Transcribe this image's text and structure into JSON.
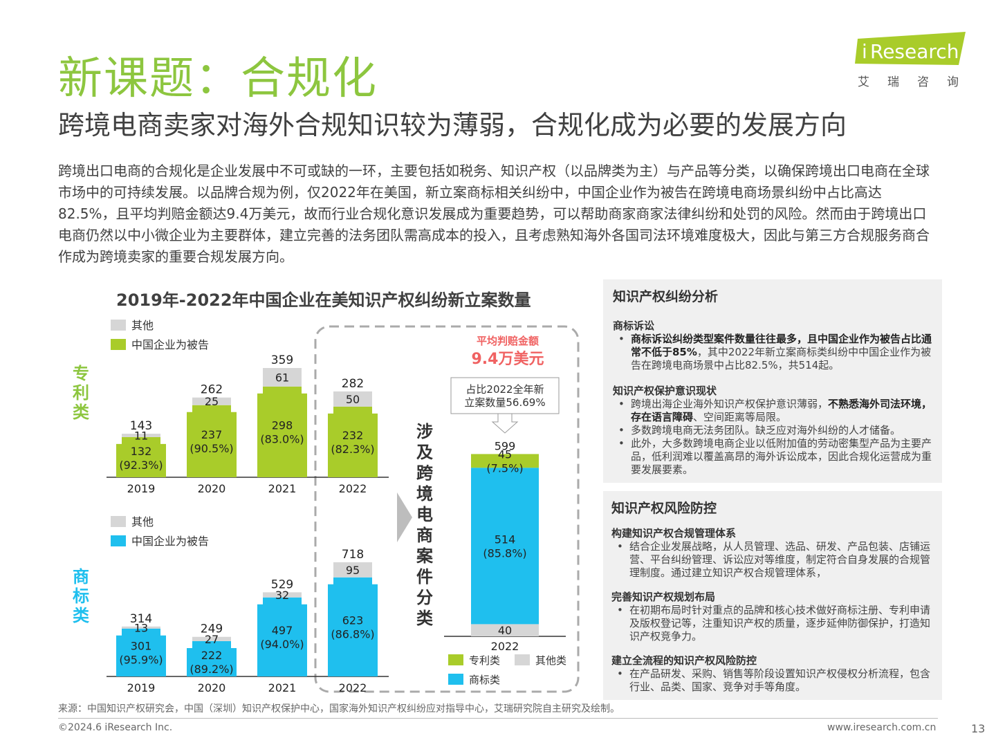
{
  "header": {
    "title": "新课题：合规化",
    "subtitle": "跨境电商卖家对海外合规知识较为薄弱，合规化成为必要的发展方向",
    "logo_i": "i",
    "logo_text": "Research",
    "logo_cn": "艾瑞咨询"
  },
  "intro": "跨境出口电商的合规化是企业发展中不可或缺的一环，主要包括如税务、知识产权（以品牌类为主）与产品等分类，以确保跨境出口电商在全球市场中的可持续发展。以品牌合规为例，仅2022年在美国，新立案商标相关纠纷中，中国企业作为被告在跨境电商场景纠纷中占比高达82.5%，且平均判赔金额达9.4万美元，故而行业合规化意识发展成为重要趋势，可以帮助商家商家法律纠纷和处罚的风险。然而由于跨境出口电商仍然以中小微企业为主要群体，建立完善的法务团队需高成本的投入，且考虑熟知海外各国司法环境难度极大，因此与第三方合规服务商合作成为跨境卖家的重要合规发展方向。",
  "colors": {
    "green": "#a9cc2a",
    "blue": "#1fbfee",
    "gray": "#d6d6d6",
    "title_green": "#8dc63f",
    "label_green": "#8dc63f",
    "label_blue": "#1fbfee",
    "red": "#f06262"
  },
  "chart_data": [
    {
      "type": "bar",
      "title": "2019年-2022年中国企业在美知识产权纠纷新立案数量",
      "row_label": "专利类",
      "categories": [
        "2019",
        "2020",
        "2021",
        "2022"
      ],
      "legend": [
        "其他",
        "中国企业为被告"
      ],
      "series": [
        {
          "name": "中国企业为被告",
          "values": [
            132,
            237,
            298,
            232
          ],
          "labels": [
            "(92.3%)",
            "(90.5%)",
            "(83.0%)",
            "(82.3%)"
          ]
        },
        {
          "name": "其他",
          "values": [
            11,
            25,
            61,
            50
          ]
        }
      ],
      "totals": [
        143,
        262,
        359,
        282
      ]
    },
    {
      "type": "bar",
      "row_label": "商标类",
      "categories": [
        "2019",
        "2020",
        "2021",
        "2022"
      ],
      "legend": [
        "其他",
        "中国企业为被告"
      ],
      "series": [
        {
          "name": "中国企业为被告",
          "values": [
            301,
            222,
            497,
            623
          ],
          "labels": [
            "(95.9%)",
            "(89.2%)",
            "(94.0%)",
            "(86.8%)"
          ]
        },
        {
          "name": "其他",
          "values": [
            13,
            27,
            32,
            95
          ]
        }
      ],
      "totals": [
        314,
        249,
        529,
        718
      ]
    },
    {
      "type": "bar",
      "categories": [
        "2022"
      ],
      "side_label": "涉及跨境电商案件分类",
      "segments": [
        {
          "name": "其他类",
          "value": 40
        },
        {
          "name": "商标类",
          "value": 514,
          "label": "(85.8%)"
        },
        {
          "name": "专利类",
          "value": 45,
          "label": "(7.5%)"
        }
      ],
      "total": 599,
      "legend": [
        "专利类",
        "其他类",
        "商标类"
      ],
      "award_title": "平均判赔金额",
      "award_value": "9.4万美元",
      "callout": [
        "占比2022全年新",
        "立案数量56.69%"
      ]
    }
  ],
  "panel1": {
    "title": "知识产权纠纷分析",
    "sections": [
      {
        "heading": "商标诉讼",
        "items": [
          {
            "bold": "商标诉讼纠纷类型案件数量往往最多，且中国企业作为被告占比通常不低于85%",
            "text": "，其中2022年新立案商标类纠纷中中国企业作为被告在跨境电商场景中占比82.5%，共514起。"
          }
        ]
      },
      {
        "heading": "知识产权保护意识现状",
        "items": [
          {
            "text": "跨境出海企业海外知识产权保护意识薄弱，",
            "bold": "不熟悉海外司法环境，存在语言障碍",
            "text2": "、空间距离等局限。"
          },
          {
            "text": "多数跨境电商无法务团队。缺乏应对海外纠纷的人才储备。"
          },
          {
            "text": "此外，大多数跨境电商企业以低附加值的劳动密集型产品为主要产品，低利润难以覆盖高昂的海外诉讼成本，因此合规化运营成为重要发展要素。"
          }
        ]
      }
    ]
  },
  "panel2": {
    "title": "知识产权风险防控",
    "sections": [
      {
        "heading": "构建知识产权合规管理体系",
        "items": [
          {
            "text": "结合企业发展战略，从人员管理、选品、研发、产品包装、店铺运营、平台纠纷管理、诉讼应对等维度，制定符合自身发展的合规管理制度。通过建立知识产权合规管理体系，"
          }
        ]
      },
      {
        "heading": "完善知识产权规划布局",
        "items": [
          {
            "text": "在初期布局时针对重点的品牌和核心技术做好商标注册、专利申请及版权登记等，注重知识产权的质量，逐步延伸防御保护，打造知识产权竞争力。"
          }
        ]
      },
      {
        "heading": "建立全流程的知识产权风险防控",
        "items": [
          {
            "text": "在产品研发、采购、销售等阶段设置知识产权侵权分析流程，包含行业、品类、国家、竞争对手等角度。"
          }
        ]
      }
    ]
  },
  "footer": {
    "source": "来源：中国知识产权研究会，中国（深圳）知识产权保护中心，国家海外知识产权纠纷应对指导中心，艾瑞研究院自主研究及绘制。",
    "copyright": "©2024.6 iResearch Inc.",
    "site": "www.iresearch.com.cn",
    "page": "13"
  }
}
